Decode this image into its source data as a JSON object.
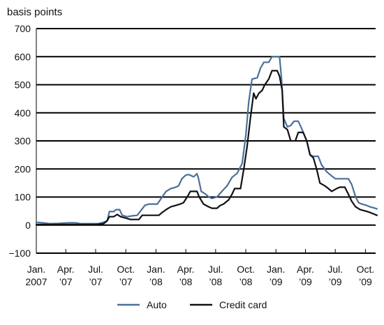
{
  "chart_data": {
    "type": "line",
    "ylabel": "basis points",
    "ylim": [
      -100,
      700
    ],
    "yticks": [
      -100,
      0,
      100,
      200,
      300,
      400,
      500,
      600,
      700
    ],
    "grid": "horizontal",
    "legend": "bottom",
    "x_range": [
      "2007-01",
      "2009-11"
    ],
    "xticks": [
      {
        "date": "2007-01",
        "label1": "Jan.",
        "label2": "2007"
      },
      {
        "date": "2007-04",
        "label1": "Apr.",
        "label2": "’07"
      },
      {
        "date": "2007-07",
        "label1": "Jul.",
        "label2": "’07"
      },
      {
        "date": "2007-10",
        "label1": "Oct.",
        "label2": "’07"
      },
      {
        "date": "2008-01",
        "label1": "Jan.",
        "label2": "’08"
      },
      {
        "date": "2008-04",
        "label1": "Apr.",
        "label2": "’08"
      },
      {
        "date": "2008-07",
        "label1": "Jul.",
        "label2": "’08"
      },
      {
        "date": "2008-10",
        "label1": "Oct.",
        "label2": "’08"
      },
      {
        "date": "2009-01",
        "label1": "Jan.",
        "label2": "’09"
      },
      {
        "date": "2009-04",
        "label1": "Apr.",
        "label2": "’09"
      },
      {
        "date": "2009-07",
        "label1": "Jul.",
        "label2": "’09"
      },
      {
        "date": "2009-10",
        "label1": "Oct.",
        "label2": "’09"
      }
    ],
    "series": [
      {
        "name": "Auto",
        "color": "#4a6f9a",
        "points": [
          [
            "2007-01-01",
            10
          ],
          [
            "2007-01-20",
            8
          ],
          [
            "2007-02-10",
            5
          ],
          [
            "2007-03-10",
            6
          ],
          [
            "2007-04-10",
            8
          ],
          [
            "2007-05-01",
            8
          ],
          [
            "2007-05-15",
            5
          ],
          [
            "2007-06-15",
            5
          ],
          [
            "2007-07-10",
            5
          ],
          [
            "2007-07-25",
            10
          ],
          [
            "2007-08-05",
            15
          ],
          [
            "2007-08-12",
            48
          ],
          [
            "2007-08-25",
            48
          ],
          [
            "2007-09-01",
            55
          ],
          [
            "2007-09-12",
            55
          ],
          [
            "2007-09-20",
            35
          ],
          [
            "2007-10-05",
            30
          ],
          [
            "2007-10-20",
            33
          ],
          [
            "2007-11-05",
            35
          ],
          [
            "2007-11-15",
            50
          ],
          [
            "2007-11-28",
            70
          ],
          [
            "2007-12-10",
            75
          ],
          [
            "2008-01-05",
            75
          ],
          [
            "2008-01-20",
            100
          ],
          [
            "2008-02-01",
            120
          ],
          [
            "2008-02-15",
            130
          ],
          [
            "2008-03-01",
            135
          ],
          [
            "2008-03-10",
            140
          ],
          [
            "2008-03-20",
            165
          ],
          [
            "2008-04-01",
            178
          ],
          [
            "2008-04-10",
            180
          ],
          [
            "2008-04-25",
            172
          ],
          [
            "2008-05-05",
            183
          ],
          [
            "2008-05-10",
            165
          ],
          [
            "2008-05-18",
            120
          ],
          [
            "2008-06-01",
            110
          ],
          [
            "2008-06-10",
            100
          ],
          [
            "2008-06-20",
            95
          ],
          [
            "2008-07-05",
            100
          ],
          [
            "2008-07-20",
            120
          ],
          [
            "2008-08-05",
            140
          ],
          [
            "2008-08-20",
            170
          ],
          [
            "2008-09-05",
            185
          ],
          [
            "2008-09-20",
            220
          ],
          [
            "2008-10-01",
            320
          ],
          [
            "2008-10-10",
            440
          ],
          [
            "2008-10-20",
            520
          ],
          [
            "2008-11-05",
            525
          ],
          [
            "2008-11-15",
            560
          ],
          [
            "2008-11-25",
            580
          ],
          [
            "2008-12-10",
            580
          ],
          [
            "2008-12-20",
            600
          ],
          [
            "2009-01-05",
            600
          ],
          [
            "2009-01-12",
            600
          ],
          [
            "2009-01-18",
            520
          ],
          [
            "2009-01-25",
            380
          ],
          [
            "2009-02-05",
            350
          ],
          [
            "2009-02-15",
            355
          ],
          [
            "2009-02-25",
            370
          ],
          [
            "2009-03-10",
            370
          ],
          [
            "2009-03-20",
            345
          ],
          [
            "2009-04-05",
            300
          ],
          [
            "2009-04-15",
            250
          ],
          [
            "2009-04-25",
            245
          ],
          [
            "2009-05-10",
            245
          ],
          [
            "2009-05-20",
            215
          ],
          [
            "2009-06-05",
            190
          ],
          [
            "2009-06-20",
            175
          ],
          [
            "2009-07-01",
            165
          ],
          [
            "2009-07-25",
            165
          ],
          [
            "2009-08-10",
            165
          ],
          [
            "2009-08-20",
            145
          ],
          [
            "2009-09-01",
            100
          ],
          [
            "2009-09-10",
            80
          ],
          [
            "2009-09-20",
            75
          ],
          [
            "2009-10-05",
            70
          ],
          [
            "2009-10-15",
            65
          ],
          [
            "2009-10-25",
            62
          ],
          [
            "2009-11-05",
            58
          ]
        ]
      },
      {
        "name": "Credit card",
        "color": "#111111",
        "points": [
          [
            "2007-01-01",
            2
          ],
          [
            "2007-03-01",
            2
          ],
          [
            "2007-05-01",
            2
          ],
          [
            "2007-07-01",
            2
          ],
          [
            "2007-07-25",
            5
          ],
          [
            "2007-08-05",
            15
          ],
          [
            "2007-08-12",
            30
          ],
          [
            "2007-08-25",
            30
          ],
          [
            "2007-09-05",
            38
          ],
          [
            "2007-09-15",
            30
          ],
          [
            "2007-10-01",
            25
          ],
          [
            "2007-10-15",
            20
          ],
          [
            "2007-11-10",
            20
          ],
          [
            "2007-11-20",
            35
          ],
          [
            "2007-12-10",
            35
          ],
          [
            "2008-01-10",
            35
          ],
          [
            "2008-01-20",
            45
          ],
          [
            "2008-02-01",
            55
          ],
          [
            "2008-02-15",
            65
          ],
          [
            "2008-03-01",
            70
          ],
          [
            "2008-03-15",
            75
          ],
          [
            "2008-03-25",
            80
          ],
          [
            "2008-04-05",
            100
          ],
          [
            "2008-04-15",
            120
          ],
          [
            "2008-04-25",
            120
          ],
          [
            "2008-05-05",
            120
          ],
          [
            "2008-05-12",
            100
          ],
          [
            "2008-05-25",
            75
          ],
          [
            "2008-06-10",
            65
          ],
          [
            "2008-06-20",
            60
          ],
          [
            "2008-07-05",
            60
          ],
          [
            "2008-07-15",
            70
          ],
          [
            "2008-07-25",
            75
          ],
          [
            "2008-08-10",
            90
          ],
          [
            "2008-08-20",
            110
          ],
          [
            "2008-08-28",
            130
          ],
          [
            "2008-09-15",
            130
          ],
          [
            "2008-09-25",
            200
          ],
          [
            "2008-10-05",
            280
          ],
          [
            "2008-10-15",
            380
          ],
          [
            "2008-10-25",
            470
          ],
          [
            "2008-11-01",
            450
          ],
          [
            "2008-11-10",
            470
          ],
          [
            "2008-11-20",
            480
          ],
          [
            "2008-11-28",
            500
          ],
          [
            "2008-12-10",
            520
          ],
          [
            "2008-12-20",
            550
          ],
          [
            "2009-01-05",
            550
          ],
          [
            "2009-01-12",
            530
          ],
          [
            "2009-01-20",
            480
          ],
          [
            "2009-01-25",
            350
          ],
          [
            "2009-02-05",
            340
          ],
          [
            "2009-02-15",
            300
          ],
          [
            "2009-03-01",
            300
          ],
          [
            "2009-03-10",
            330
          ],
          [
            "2009-03-25",
            330
          ],
          [
            "2009-04-05",
            300
          ],
          [
            "2009-04-15",
            250
          ],
          [
            "2009-04-25",
            240
          ],
          [
            "2009-05-05",
            200
          ],
          [
            "2009-05-15",
            150
          ],
          [
            "2009-05-30",
            140
          ],
          [
            "2009-06-10",
            130
          ],
          [
            "2009-06-20",
            120
          ],
          [
            "2009-07-05",
            130
          ],
          [
            "2009-07-15",
            135
          ],
          [
            "2009-07-30",
            135
          ],
          [
            "2009-08-10",
            110
          ],
          [
            "2009-08-20",
            85
          ],
          [
            "2009-09-01",
            65
          ],
          [
            "2009-09-15",
            55
          ],
          [
            "2009-10-01",
            50
          ],
          [
            "2009-10-15",
            45
          ],
          [
            "2009-10-25",
            40
          ],
          [
            "2009-11-05",
            35
          ]
        ]
      }
    ]
  }
}
